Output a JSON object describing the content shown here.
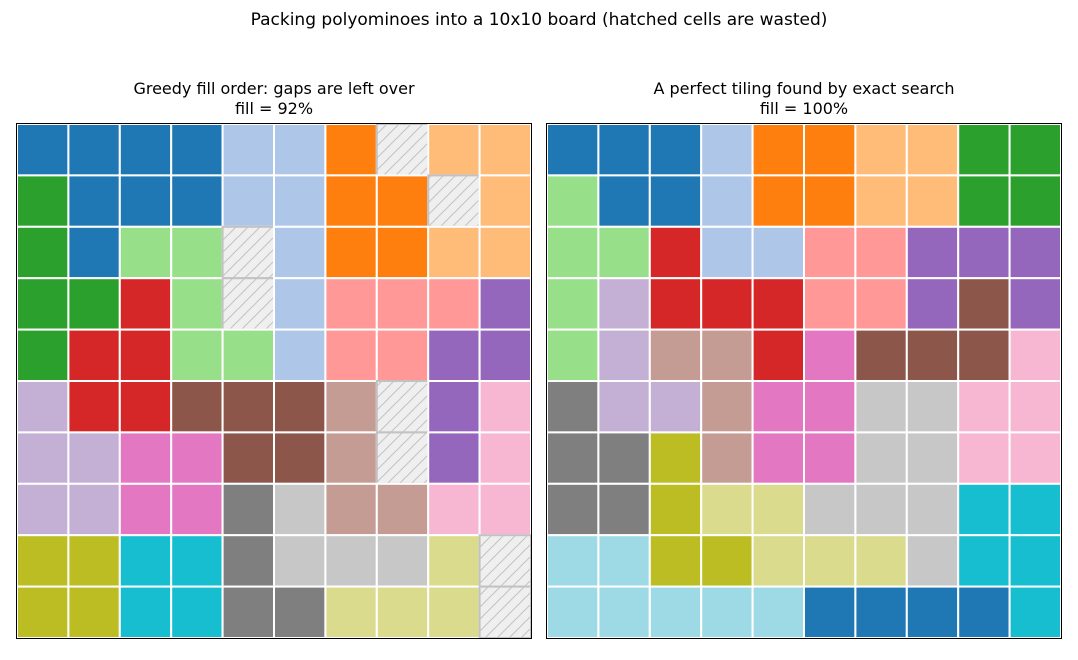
{
  "figure": {
    "suptitle": "Packing polyominoes into a 10x10 board (hatched cells are wasted)"
  },
  "chart_data": [
    {
      "type": "heatmap",
      "title": "Greedy fill order: gaps are left over",
      "subtitle": "fill = 92%",
      "rows": 10,
      "cols": 10,
      "wasted_label": "X",
      "grid": [
        [
          "blue",
          "blue",
          "blue",
          "blue",
          "lightblue",
          "lightblue",
          "orange",
          "X",
          "lightorange",
          "lightorange"
        ],
        [
          "green",
          "blue",
          "blue",
          "blue",
          "lightblue",
          "lightblue",
          "orange",
          "orange",
          "X",
          "lightorange"
        ],
        [
          "green",
          "blue",
          "lightgreen",
          "lightgreen",
          "X",
          "lightblue",
          "orange",
          "orange",
          "lightorange",
          "lightorange"
        ],
        [
          "green",
          "green",
          "red",
          "lightgreen",
          "X",
          "lightblue",
          "lightred",
          "lightred",
          "lightred",
          "purple"
        ],
        [
          "green",
          "red",
          "red",
          "lightgreen",
          "lightgreen",
          "lightblue",
          "lightred",
          "lightred",
          "purple",
          "purple"
        ],
        [
          "lightpurple",
          "red",
          "red",
          "brown",
          "brown",
          "brown",
          "lightbrown",
          "X",
          "purple",
          "lightpink"
        ],
        [
          "lightpurple",
          "lightpurple",
          "pink",
          "pink",
          "brown",
          "brown",
          "lightbrown",
          "X",
          "purple",
          "lightpink"
        ],
        [
          "lightpurple",
          "lightpurple",
          "pink",
          "pink",
          "gray",
          "lightgray",
          "lightbrown",
          "lightbrown",
          "lightpink",
          "lightpink"
        ],
        [
          "olive",
          "olive",
          "cyan",
          "cyan",
          "gray",
          "lightgray",
          "lightgray",
          "lightgray",
          "lightolive",
          "X"
        ],
        [
          "olive",
          "olive",
          "cyan",
          "cyan",
          "gray",
          "gray",
          "lightolive",
          "lightolive",
          "lightolive",
          "X"
        ]
      ]
    },
    {
      "type": "heatmap",
      "title": "A perfect tiling found by exact search",
      "subtitle": "fill = 100%",
      "rows": 10,
      "cols": 10,
      "wasted_label": "X",
      "grid": [
        [
          "blue",
          "blue",
          "blue",
          "lightblue",
          "orange",
          "orange",
          "lightorange",
          "lightorange",
          "green",
          "green"
        ],
        [
          "lightgreen",
          "blue",
          "blue",
          "lightblue",
          "orange",
          "orange",
          "lightorange",
          "lightorange",
          "green",
          "green"
        ],
        [
          "lightgreen",
          "lightgreen",
          "red",
          "lightblue",
          "lightblue",
          "lightred",
          "lightred",
          "purple",
          "purple",
          "purple"
        ],
        [
          "lightgreen",
          "lightpurple",
          "red",
          "red",
          "red",
          "lightred",
          "lightred",
          "purple",
          "brown",
          "purple"
        ],
        [
          "lightgreen",
          "lightpurple",
          "lightbrown",
          "lightbrown",
          "red",
          "pink",
          "brown",
          "brown",
          "brown",
          "lightpink"
        ],
        [
          "gray",
          "lightpurple",
          "lightpurple",
          "lightbrown",
          "pink",
          "pink",
          "lightgray",
          "lightgray",
          "lightpink",
          "lightpink"
        ],
        [
          "gray",
          "gray",
          "olive",
          "lightbrown",
          "pink",
          "pink",
          "lightgray",
          "lightgray",
          "lightpink",
          "lightpink"
        ],
        [
          "gray",
          "gray",
          "olive",
          "lightolive",
          "lightolive",
          "lightgray",
          "lightgray",
          "lightgray",
          "cyan",
          "cyan"
        ],
        [
          "lightcyan",
          "lightcyan",
          "olive",
          "olive",
          "lightolive",
          "lightolive",
          "lightolive",
          "lightgray",
          "cyan",
          "cyan"
        ],
        [
          "lightcyan",
          "lightcyan",
          "lightcyan",
          "lightcyan",
          "lightcyan",
          "blue",
          "blue",
          "blue",
          "blue",
          "cyan"
        ]
      ]
    }
  ],
  "palette": {
    "blue": "#1f77b4",
    "lightblue": "#aec7e8",
    "orange": "#ff7f0e",
    "lightorange": "#ffbb78",
    "green": "#2ca02c",
    "lightgreen": "#98df8a",
    "red": "#d62728",
    "lightred": "#ff9896",
    "purple": "#9467bd",
    "lightpurple": "#c5b0d5",
    "brown": "#8c564b",
    "lightbrown": "#c49c94",
    "pink": "#e377c2",
    "lightpink": "#f7b6d2",
    "gray": "#7f7f7f",
    "lightgray": "#c7c7c7",
    "olive": "#bcbd22",
    "lightolive": "#dbdb8d",
    "cyan": "#17becf",
    "lightcyan": "#9edae5",
    "wasted": "#efefef",
    "hatch": "#c2c2c2",
    "cell_border": "#ffffff"
  }
}
